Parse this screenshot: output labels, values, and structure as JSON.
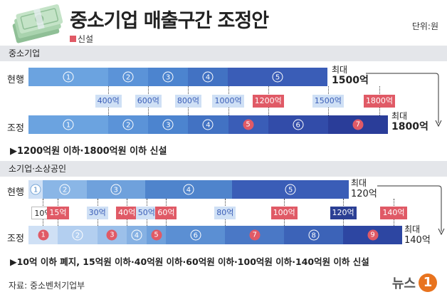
{
  "title": "중소기업 매출구간 조정안",
  "unit": "단위:원",
  "legend": "신설",
  "colors": {
    "new": "#e05a66",
    "dark_navy": "#2b3f94",
    "light_blue": "#cfe0f5"
  },
  "section1": {
    "header": "중소기업",
    "current": {
      "label": "현행",
      "segments": [
        {
          "num": "1",
          "color": "#6ba3e0",
          "flex": 2.0
        },
        {
          "num": "2",
          "color": "#5b93d8",
          "flex": 1.0
        },
        {
          "num": "3",
          "color": "#4c84cf",
          "flex": 1.0
        },
        {
          "num": "4",
          "color": "#4272c3",
          "flex": 1.0
        },
        {
          "num": "5",
          "color": "#3a5db7",
          "flex": 2.5
        }
      ],
      "end_top": "최대",
      "end_big": "1500억"
    },
    "tags": [
      {
        "text": "400억",
        "new": false
      },
      {
        "text": "600억",
        "new": false
      },
      {
        "text": "800억",
        "new": false
      },
      {
        "text": "1000억",
        "new": false
      },
      {
        "text": "1200억",
        "new": true
      },
      {
        "text": "1500억",
        "new": false
      },
      {
        "text": "1800억",
        "new": true
      }
    ],
    "adjusted": {
      "label": "조정",
      "segments": [
        {
          "num": "1",
          "color": "#6ba3e0",
          "flex": 2.0,
          "new": false
        },
        {
          "num": "2",
          "color": "#5b93d8",
          "flex": 1.0,
          "new": false
        },
        {
          "num": "3",
          "color": "#4c84cf",
          "flex": 1.0,
          "new": false
        },
        {
          "num": "4",
          "color": "#4272c3",
          "flex": 1.0,
          "new": false
        },
        {
          "num": "5",
          "color": "#3a5db7",
          "flex": 1.0,
          "new": true
        },
        {
          "num": "6",
          "color": "#324ca9",
          "flex": 1.5,
          "new": false
        },
        {
          "num": "7",
          "color": "#2a3d99",
          "flex": 1.5,
          "new": true
        }
      ],
      "end_top": "최대",
      "end_big": "1800억"
    },
    "note": "▶1200억원 이하·1800억원 이하 신설"
  },
  "section2": {
    "header": "소기업·소상공인",
    "current": {
      "label": "현행",
      "segments": [
        {
          "num": "1",
          "color": "#cfe0f5",
          "flex": 0.5,
          "style": "b"
        },
        {
          "num": "2",
          "color": "#8ab6e6",
          "flex": 1.5
        },
        {
          "num": "3",
          "color": "#6fa1dc",
          "flex": 2.0
        },
        {
          "num": "4",
          "color": "#4f84cc",
          "flex": 3.0
        },
        {
          "num": "5",
          "color": "#3a5db7",
          "flex": 4.0
        }
      ],
      "end_top": "최대",
      "end_big": "120억"
    },
    "tags": [
      {
        "text": "10억",
        "new": false,
        "style": "plain"
      },
      {
        "text": "15억",
        "new": true
      },
      {
        "text": "30억",
        "new": false
      },
      {
        "text": "40억",
        "new": true
      },
      {
        "text": "50억",
        "new": false
      },
      {
        "text": "60억",
        "new": true
      },
      {
        "text": "80억",
        "new": false
      },
      {
        "text": "100억",
        "new": true
      },
      {
        "text": "120억",
        "new": false,
        "style": "dark"
      },
      {
        "text": "140억",
        "new": true
      }
    ],
    "adjusted": {
      "label": "조정",
      "segments": [
        {
          "num": "1",
          "color": "#cfe0f5",
          "flex": 0.75,
          "new": true
        },
        {
          "num": "2",
          "color": "#b3cff0",
          "flex": 1.0,
          "new": false
        },
        {
          "num": "3",
          "color": "#9cc0ea",
          "flex": 0.75,
          "new": true
        },
        {
          "num": "4",
          "color": "#86b1e3",
          "flex": 0.5,
          "new": false
        },
        {
          "num": "5",
          "color": "#6fa1dc",
          "flex": 0.5,
          "new": true
        },
        {
          "num": "6",
          "color": "#5b8fd3",
          "flex": 1.5,
          "new": false
        },
        {
          "num": "7",
          "color": "#4a78c6",
          "flex": 1.5,
          "new": true
        },
        {
          "num": "8",
          "color": "#3c63b8",
          "flex": 1.5,
          "new": false
        },
        {
          "num": "9",
          "color": "#2d46a2",
          "flex": 1.5,
          "new": true
        }
      ],
      "end_top": "최대",
      "end_big": "140억"
    },
    "note": "▶10억 이하 폐지, 15억원 이하·40억원 이하·60억원 이하·100억원 이하·140억원 이하 신설"
  },
  "source": "자료: 중소벤처기업부",
  "logo": {
    "text": "뉴스",
    "badge": "1"
  }
}
